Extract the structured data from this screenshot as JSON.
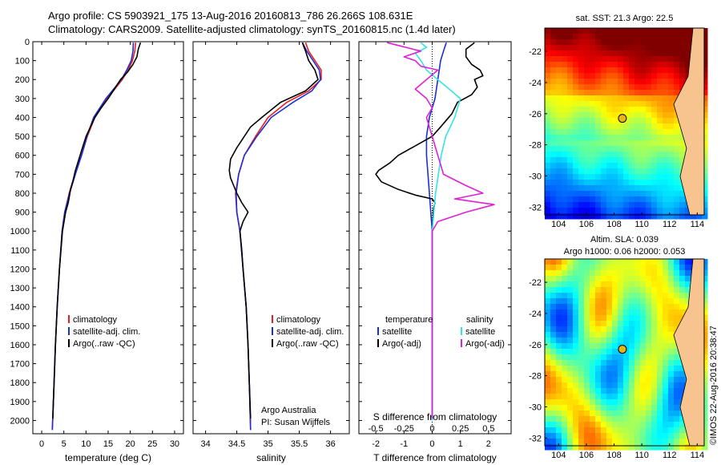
{
  "title": {
    "line1": "Argo profile: CS 5903921_175 13-Aug-2016 20160813_786 26.266S 108.631E",
    "line2": "Climatology: CARS2009. Satellite-adjusted climatology: synTS_20160815.nc (1.4d later)"
  },
  "colors": {
    "climatology": "#e8201e",
    "satellite": "#1a2fd6",
    "argo": "#000000",
    "satellite_salinity": "#33e4e8",
    "argo_salinity_diff": "#e020d8"
  },
  "y_axis": {
    "ticks": [
      "0",
      "100",
      "200",
      "300",
      "400",
      "500",
      "600",
      "700",
      "800",
      "900",
      "1000",
      "1100",
      "1200",
      "1300",
      "1400",
      "1500",
      "1600",
      "1700",
      "1800",
      "1900",
      "2000"
    ]
  },
  "chart_data": [
    {
      "type": "line",
      "panel": "temperature",
      "xlabel": "temperature (deg C)",
      "xlim": [
        -2,
        32
      ],
      "ylim": [
        2070,
        0
      ],
      "xticks": [
        "0",
        "5",
        "10",
        "15",
        "20",
        "25",
        "30"
      ],
      "legend": [
        "climatology",
        "satellite-adj. clim.",
        "Argo(..raw -QC)"
      ],
      "series": [
        {
          "name": "climatology",
          "depth": [
            5,
            50,
            100,
            150,
            200,
            300,
            400,
            500,
            600,
            700,
            800,
            900,
            1000,
            1200,
            1400,
            1600,
            1800,
            2050
          ],
          "values": [
            21.2,
            21.0,
            20.5,
            19.5,
            18.2,
            14.8,
            12.0,
            10.3,
            9.0,
            7.5,
            6.2,
            5.2,
            4.6,
            4.0,
            3.5,
            3.1,
            2.8,
            2.4
          ]
        },
        {
          "name": "satellite-adj. clim.",
          "depth": [
            5,
            50,
            100,
            150,
            200,
            300,
            400,
            500,
            600,
            700,
            800,
            900,
            1000,
            1200,
            1400,
            1600,
            1800,
            2050
          ],
          "values": [
            20.7,
            20.6,
            20.2,
            19.2,
            18.0,
            14.5,
            11.7,
            10.2,
            9.0,
            7.6,
            6.3,
            5.2,
            4.6,
            4.0,
            3.5,
            3.1,
            2.8,
            2.4
          ]
        },
        {
          "name": "Argo(..raw -QC)",
          "depth": [
            5,
            40,
            80,
            120,
            160,
            200,
            250,
            300,
            350,
            400,
            450,
            500,
            560,
            620,
            680,
            740,
            780,
            810,
            850,
            900,
            1000,
            1200,
            1400,
            1600,
            1800,
            1990
          ],
          "values": [
            22.3,
            21.8,
            21.5,
            20.6,
            19.4,
            17.8,
            16.4,
            15.0,
            13.4,
            12.0,
            11.0,
            10.0,
            9.2,
            8.4,
            7.6,
            7.0,
            6.5,
            6.3,
            6.0,
            5.4,
            4.7,
            4.0,
            3.5,
            3.1,
            2.8,
            2.5
          ]
        }
      ]
    },
    {
      "type": "line",
      "panel": "salinity",
      "xlabel": "salinity",
      "xlim": [
        33.8,
        36.3
      ],
      "ylim": [
        2070,
        0
      ],
      "xticks": [
        "34",
        "34.5",
        "35",
        "35.5",
        "36"
      ],
      "legend": [
        "climatology",
        "satellite-adj. clim.",
        "Argo(..raw -QC)"
      ],
      "series": [
        {
          "name": "climatology",
          "depth": [
            5,
            50,
            100,
            150,
            200,
            260,
            320,
            400,
            500,
            600,
            700,
            800,
            900,
            1000,
            1200,
            1400,
            1600,
            1800,
            2050
          ],
          "values": [
            35.6,
            35.65,
            35.75,
            35.85,
            35.85,
            35.65,
            35.3,
            35.0,
            34.8,
            34.62,
            34.53,
            34.48,
            34.5,
            34.55,
            34.6,
            34.65,
            34.68,
            34.7,
            34.72
          ]
        },
        {
          "name": "satellite-adj. clim.",
          "depth": [
            5,
            50,
            100,
            150,
            200,
            260,
            320,
            400,
            500,
            600,
            700,
            800,
            900,
            1000,
            1200,
            1400,
            1600,
            1800,
            2050
          ],
          "values": [
            35.55,
            35.62,
            35.72,
            35.82,
            35.84,
            35.7,
            35.4,
            35.05,
            34.82,
            34.62,
            34.53,
            34.49,
            34.5,
            34.55,
            34.6,
            34.65,
            34.68,
            34.7,
            34.72
          ]
        },
        {
          "name": "Argo(..raw -QC)",
          "depth": [
            5,
            50,
            100,
            150,
            200,
            260,
            320,
            400,
            450,
            500,
            560,
            620,
            680,
            720,
            760,
            800,
            850,
            900,
            950,
            1000,
            1100,
            1200,
            1400,
            1600,
            1800,
            1990
          ],
          "values": [
            35.55,
            35.6,
            35.65,
            35.75,
            35.8,
            35.6,
            35.2,
            34.9,
            34.72,
            34.62,
            34.5,
            34.4,
            34.38,
            34.4,
            34.45,
            34.5,
            34.58,
            34.68,
            34.6,
            34.55,
            34.58,
            34.6,
            34.65,
            34.68,
            34.7,
            34.72
          ]
        }
      ],
      "annotation": [
        "Argo Australia",
        "PI: Susan Wijffels"
      ]
    },
    {
      "type": "line",
      "panel": "differences",
      "xlabel": "T difference from climatology",
      "xlabel_top": "S difference from climatology",
      "xlim": [
        -2.6,
        2.8
      ],
      "ylim": [
        2070,
        0
      ],
      "xticks": [
        "-2",
        "-1",
        "0",
        "1",
        "2"
      ],
      "xticks_top": [
        "-0.5",
        "-0.25",
        "0",
        "0.25",
        "0.5"
      ],
      "legend_titles": [
        "temperature",
        "salinity"
      ],
      "legend": [
        "satellite",
        "Argo(-adj)",
        "satellite",
        "Argo(-adj)"
      ],
      "series": [
        {
          "name": "satellite",
          "group": "temperature",
          "depth": [
            5,
            50,
            100,
            200,
            300,
            400,
            500,
            600,
            800,
            1000,
            1500,
            2000
          ],
          "values": [
            0.5,
            0.4,
            0.3,
            0.2,
            0.1,
            -0.1,
            -0.2,
            -0.2,
            -0.1,
            0,
            0,
            0
          ]
        },
        {
          "name": "Argo(-adj)",
          "group": "temperature",
          "depth": [
            5,
            40,
            80,
            120,
            150,
            180,
            200,
            240,
            280,
            320,
            380,
            450,
            500,
            550,
            600,
            640,
            680,
            700,
            740,
            780,
            810,
            830,
            850,
            880,
            1000,
            1500,
            1990
          ],
          "values": [
            1.5,
            1.2,
            1.2,
            1.4,
            1.7,
            1.8,
            1.5,
            1.6,
            1.4,
            0.9,
            0.7,
            0.3,
            0,
            -0.6,
            -1.2,
            -1.5,
            -1.9,
            -2.0,
            -1.8,
            -1.2,
            -0.6,
            0,
            0.1,
            0.05,
            0,
            0,
            0
          ]
        },
        {
          "name": "satellite",
          "group": "salinity",
          "depth": [
            5,
            30,
            60,
            100,
            150,
            200,
            300,
            400,
            500,
            600,
            800,
            1000,
            1500,
            2000
          ],
          "values": [
            -0.1,
            -0.05,
            -0.15,
            -0.1,
            -0.05,
            0.05,
            0.25,
            0.2,
            0.12,
            0.08,
            0.03,
            0,
            0,
            0
          ]
        },
        {
          "name": "Argo(-adj)",
          "group": "salinity",
          "depth": [
            5,
            20,
            50,
            80,
            100,
            130,
            150,
            200,
            250,
            300,
            350,
            400,
            500,
            600,
            700,
            760,
            800,
            830,
            860,
            900,
            950,
            1000,
            1500,
            1990
          ],
          "values": [
            -0.4,
            -0.3,
            -0.1,
            -0.25,
            -0.15,
            -0.1,
            0.05,
            -0.05,
            -0.15,
            -0.05,
            0,
            -0.05,
            0,
            0.05,
            0.1,
            0.3,
            0.45,
            0.2,
            0.55,
            0.3,
            0.05,
            0,
            0,
            0
          ]
        }
      ]
    },
    {
      "type": "heatmap",
      "panel": "sst_map",
      "title": "sat. SST: 21.3 Argo: 22.5",
      "xlim": [
        103,
        114.5
      ],
      "ylim": [
        -32.5,
        -20.5
      ],
      "xticks": [
        "104",
        "106",
        "108",
        "110",
        "112",
        "114"
      ],
      "yticks": [
        "-22",
        "-24",
        "-26",
        "-28",
        "-30",
        "-32"
      ],
      "marker": {
        "lon": 108.6,
        "lat": -26.3
      }
    },
    {
      "type": "heatmap",
      "panel": "sla_map",
      "title": "Altim. SLA: 0.039",
      "subtitle": "Argo h1000: 0.06 h2000: 0.053",
      "xlim": [
        103,
        114.5
      ],
      "ylim": [
        -32.5,
        -20.5
      ],
      "xticks": [
        "104",
        "106",
        "108",
        "110",
        "112",
        "114"
      ],
      "yticks": [
        "-22",
        "-24",
        "-26",
        "-28",
        "-30",
        "-32"
      ],
      "marker": {
        "lon": 108.6,
        "lat": -26.3
      }
    }
  ],
  "credit": "©IMOS 22-Aug-2016 20:38:47"
}
